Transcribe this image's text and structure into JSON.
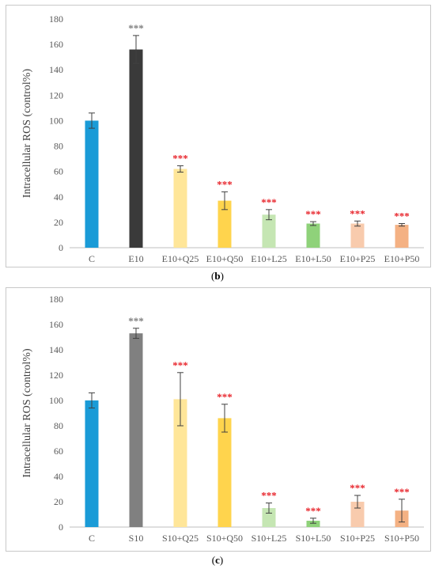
{
  "chart_data": [
    {
      "type": "bar",
      "ylabel": "Intracellular ROS (control%)",
      "ylim": [
        0,
        180
      ],
      "yticks": [
        0,
        20,
        40,
        60,
        80,
        100,
        120,
        140,
        160,
        180
      ],
      "categories": [
        "C",
        "E10",
        "E10+Q25",
        "E10+Q50",
        "E10+L25",
        "E10+L50",
        "E10+P25",
        "E10+P50"
      ],
      "values": [
        100,
        156,
        62,
        37,
        26,
        19,
        19,
        18
      ],
      "errors": [
        6,
        11,
        2.5,
        7,
        4,
        1.5,
        2,
        1
      ],
      "significance": [
        "",
        "***",
        "***",
        "***",
        "***",
        "***",
        "***",
        "***"
      ],
      "significance_colors": [
        "#000000",
        "#7f7f7f",
        "#e8242b",
        "#e8242b",
        "#e8242b",
        "#e8242b",
        "#e8242b",
        "#e8242b"
      ],
      "bar_colors": [
        "#1a9bd7",
        "#3a3a3a",
        "#ffe699",
        "#ffd44d",
        "#c5e6b3",
        "#8fd27a",
        "#f8cbad",
        "#f4b183"
      ],
      "grid": false,
      "caption": "(b)"
    },
    {
      "type": "bar",
      "ylabel": "Intracellular ROS (control%)",
      "ylim": [
        0,
        180
      ],
      "yticks": [
        0,
        20,
        40,
        60,
        80,
        100,
        120,
        140,
        160,
        180
      ],
      "categories": [
        "C",
        "S10",
        "S10+Q25",
        "S10+Q50",
        "S10+L25",
        "S10+L50",
        "S10+P25",
        "S10+P50"
      ],
      "values": [
        100,
        153,
        101,
        86,
        15,
        5,
        20,
        13
      ],
      "errors": [
        6,
        4,
        21,
        11,
        4,
        2,
        5,
        9
      ],
      "significance": [
        "",
        "***",
        "***",
        "***",
        "***",
        "***",
        "***",
        "***"
      ],
      "significance_colors": [
        "#000000",
        "#7f7f7f",
        "#e8242b",
        "#e8242b",
        "#e8242b",
        "#e8242b",
        "#e8242b",
        "#e8242b"
      ],
      "bar_colors": [
        "#1a9bd7",
        "#808080",
        "#ffe699",
        "#ffd44d",
        "#c5e6b3",
        "#8fd27a",
        "#f8cbad",
        "#f4b183"
      ],
      "grid": false,
      "caption": "(c)"
    }
  ]
}
